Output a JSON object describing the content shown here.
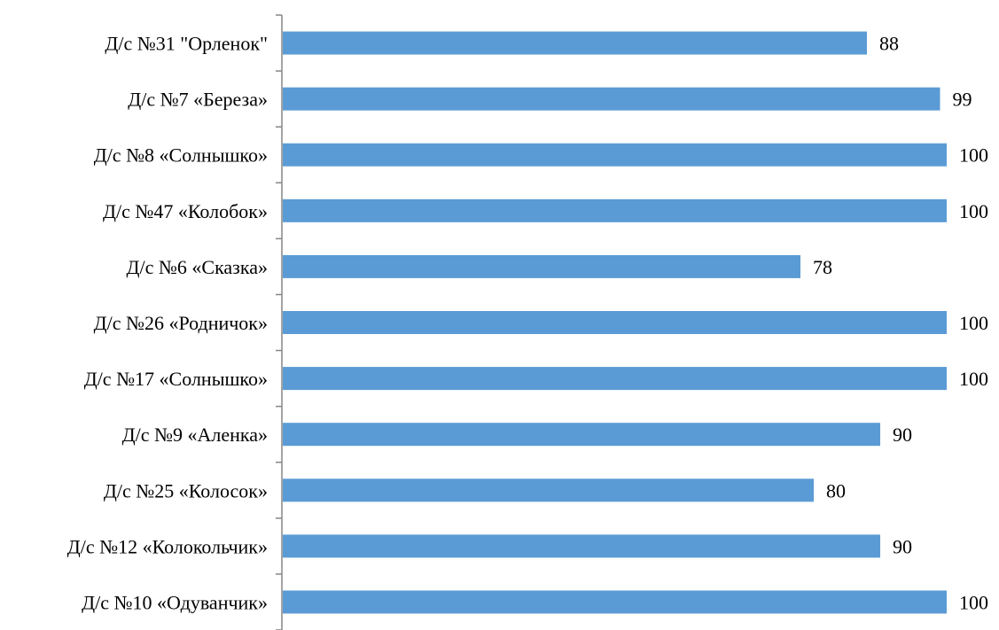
{
  "chart_data": {
    "type": "bar",
    "orientation": "horizontal",
    "categories": [
      "Д/с №31 \"Орленок\"",
      "Д/с №7 «Береза»",
      "Д/с №8 «Солнышко»",
      "Д/с №47 «Колобок»",
      "Д/с №6 «Сказка»",
      "Д/с №26 «Родничок»",
      "Д/с №17 «Солнышко»",
      "Д/с №9 «Аленка»",
      "Д/с №25 «Колосок»",
      "Д/с №12 «Колокольчик»",
      "Д/с №10 «Одуванчик»"
    ],
    "values": [
      88,
      99,
      100,
      100,
      78,
      100,
      100,
      90,
      80,
      90,
      100
    ],
    "data_labels": [
      "88",
      "99",
      "100",
      "100",
      "78",
      "100",
      "100",
      "90",
      "80",
      "90",
      "100"
    ],
    "xlim": [
      0,
      100
    ],
    "grid": false,
    "bar_color": "#5b9bd5",
    "axis_color": "#868686"
  }
}
